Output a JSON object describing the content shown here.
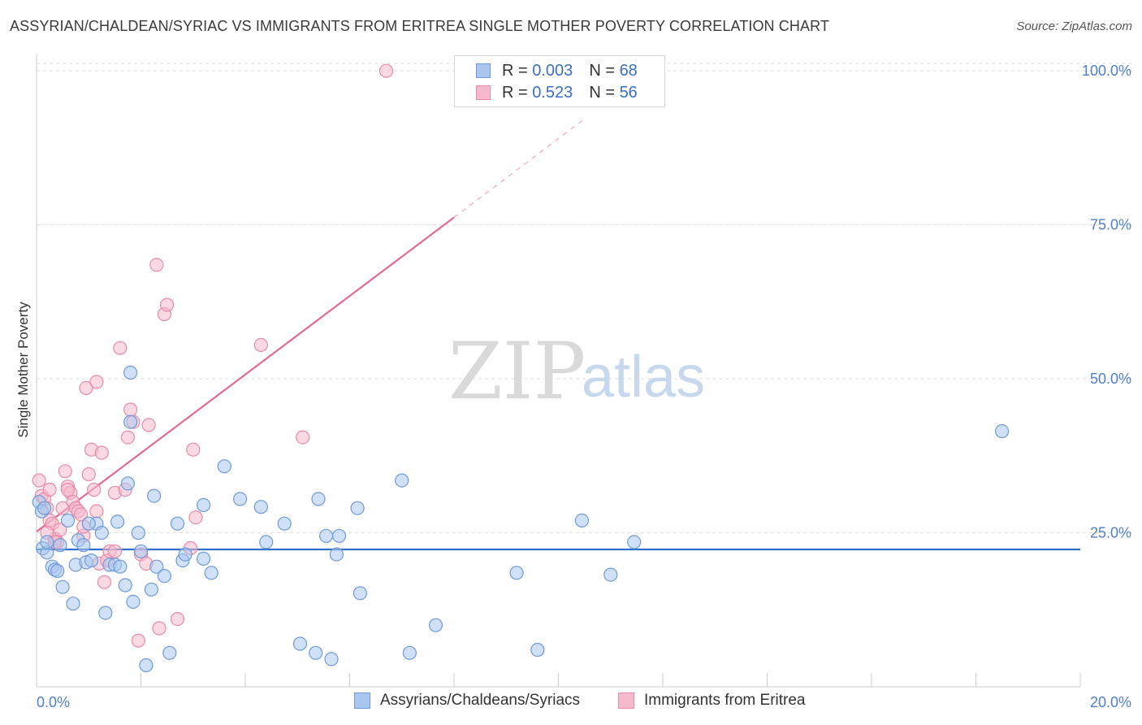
{
  "title": "ASSYRIAN/CHALDEAN/SYRIAC VS IMMIGRANTS FROM ERITREA SINGLE MOTHER POVERTY CORRELATION CHART",
  "source": "Source: ZipAtlas.com",
  "watermark": {
    "zip": "ZIP",
    "atlas": "atlas"
  },
  "legend": {
    "rows": [
      {
        "r_label": "R =",
        "r_value": "0.003",
        "n_label": "N =",
        "n_value": "68"
      },
      {
        "r_label": "R =",
        "r_value": "0.523",
        "n_label": "N =",
        "n_value": "56"
      }
    ]
  },
  "bottom_legend": [
    "Assyrians/Chaldeans/Syriacs",
    "Immigrants from Eritrea"
  ],
  "colors": {
    "blue_fill": "#a9c6ef",
    "blue_stroke": "#6f9ad8",
    "blue_line": "#2f6fcc",
    "pink_fill": "#f6b9cc",
    "pink_stroke": "#e98aa8",
    "pink_line": "#e46a93",
    "tick_text": "#4f7fcf",
    "grid": "#dddddd"
  },
  "chart_data": {
    "type": "scatter",
    "title": "ASSYRIAN/CHALDEAN/SYRIAC VS IMMIGRANTS FROM ERITREA SINGLE MOTHER POVERTY CORRELATION CHART",
    "xlabel": "",
    "ylabel": "Single Mother Poverty",
    "xlim": [
      0,
      20
    ],
    "ylim": [
      0,
      102
    ],
    "x_tick_labels": [
      "0.0%",
      "20.0%"
    ],
    "y_ticks": [
      25,
      50,
      75,
      100
    ],
    "y_tick_labels": [
      "25.0%",
      "50.0%",
      "75.0%",
      "100.0%"
    ],
    "grid": true,
    "legend_position": "top-center",
    "series": [
      {
        "name": "Assyrians/Chaldeans/Syriacs",
        "r": 0.003,
        "n": 68,
        "trend": {
          "x0": 0,
          "y0": 22.3,
          "x1": 20,
          "y1": 22.3
        },
        "points": [
          [
            0.05,
            30.0
          ],
          [
            0.1,
            28.5
          ],
          [
            0.12,
            22.5
          ],
          [
            0.2,
            21.8
          ],
          [
            0.2,
            23.5
          ],
          [
            0.3,
            19.5
          ],
          [
            0.35,
            19.0
          ],
          [
            0.4,
            18.8
          ],
          [
            0.45,
            23.0
          ],
          [
            0.5,
            16.2
          ],
          [
            0.6,
            27.0
          ],
          [
            0.7,
            13.5
          ],
          [
            0.75,
            19.8
          ],
          [
            0.8,
            23.8
          ],
          [
            0.9,
            23.0
          ],
          [
            0.95,
            20.2
          ],
          [
            1.05,
            20.5
          ],
          [
            1.15,
            26.5
          ],
          [
            1.25,
            25.0
          ],
          [
            1.32,
            12.0
          ],
          [
            1.4,
            19.8
          ],
          [
            1.5,
            19.8
          ],
          [
            1.55,
            26.8
          ],
          [
            1.6,
            19.5
          ],
          [
            1.7,
            16.5
          ],
          [
            1.75,
            33.0
          ],
          [
            1.8,
            43.0
          ],
          [
            1.8,
            51.0
          ],
          [
            1.85,
            13.8
          ],
          [
            1.95,
            25.0
          ],
          [
            2.0,
            22.0
          ],
          [
            2.1,
            3.5
          ],
          [
            2.2,
            15.8
          ],
          [
            2.25,
            31.0
          ],
          [
            2.3,
            19.5
          ],
          [
            2.45,
            18.0
          ],
          [
            2.55,
            5.5
          ],
          [
            2.7,
            26.5
          ],
          [
            2.8,
            20.5
          ],
          [
            2.85,
            21.5
          ],
          [
            3.2,
            20.8
          ],
          [
            3.2,
            29.5
          ],
          [
            3.35,
            18.5
          ],
          [
            3.6,
            35.8
          ],
          [
            3.9,
            30.5
          ],
          [
            4.3,
            29.2
          ],
          [
            4.4,
            23.5
          ],
          [
            4.75,
            26.5
          ],
          [
            5.05,
            7.0
          ],
          [
            5.35,
            5.5
          ],
          [
            5.4,
            30.5
          ],
          [
            5.55,
            24.5
          ],
          [
            5.65,
            4.5
          ],
          [
            5.75,
            21.5
          ],
          [
            5.8,
            24.5
          ],
          [
            6.15,
            29.0
          ],
          [
            6.2,
            15.2
          ],
          [
            7.0,
            33.5
          ],
          [
            7.15,
            5.5
          ],
          [
            7.65,
            10.0
          ],
          [
            9.2,
            18.5
          ],
          [
            9.6,
            6.0
          ],
          [
            10.45,
            27.0
          ],
          [
            11.0,
            18.2
          ],
          [
            11.45,
            23.5
          ],
          [
            18.5,
            41.5
          ],
          [
            0.15,
            29.0
          ],
          [
            1.0,
            26.5
          ]
        ]
      },
      {
        "name": "Immigrants from Eritrea",
        "r": 0.523,
        "n": 56,
        "trend": {
          "x0": 0,
          "y0": 25.2,
          "x1": 8.0,
          "y1": 76.2,
          "dash_x1": 10.5,
          "dash_y1": 92.2
        },
        "points": [
          [
            0.05,
            33.5
          ],
          [
            0.1,
            31.0
          ],
          [
            0.15,
            30.5
          ],
          [
            0.2,
            29.0
          ],
          [
            0.25,
            27.0
          ],
          [
            0.3,
            26.5
          ],
          [
            0.35,
            24.0
          ],
          [
            0.4,
            23.5
          ],
          [
            0.45,
            25.5
          ],
          [
            0.5,
            29.0
          ],
          [
            0.55,
            35.0
          ],
          [
            0.6,
            32.5
          ],
          [
            0.65,
            31.5
          ],
          [
            0.7,
            30.0
          ],
          [
            0.75,
            29.0
          ],
          [
            0.8,
            28.5
          ],
          [
            0.85,
            28.0
          ],
          [
            0.9,
            24.5
          ],
          [
            0.95,
            48.5
          ],
          [
            1.0,
            34.5
          ],
          [
            1.05,
            38.5
          ],
          [
            1.1,
            32.0
          ],
          [
            1.15,
            49.5
          ],
          [
            1.2,
            20.0
          ],
          [
            1.25,
            38.0
          ],
          [
            1.3,
            17.0
          ],
          [
            1.35,
            20.5
          ],
          [
            1.4,
            22.0
          ],
          [
            1.5,
            31.5
          ],
          [
            1.6,
            55.0
          ],
          [
            1.7,
            32.0
          ],
          [
            1.75,
            40.5
          ],
          [
            1.8,
            45.0
          ],
          [
            1.85,
            43.0
          ],
          [
            1.95,
            7.5
          ],
          [
            2.0,
            21.5
          ],
          [
            2.1,
            20.0
          ],
          [
            2.15,
            42.5
          ],
          [
            2.3,
            68.5
          ],
          [
            2.35,
            9.5
          ],
          [
            2.45,
            60.5
          ],
          [
            2.5,
            62.0
          ],
          [
            2.7,
            11.0
          ],
          [
            2.95,
            22.5
          ],
          [
            3.0,
            38.5
          ],
          [
            3.05,
            27.5
          ],
          [
            4.3,
            55.5
          ],
          [
            5.1,
            40.5
          ],
          [
            6.7,
            100.0
          ],
          [
            0.2,
            25.0
          ],
          [
            0.35,
            23.5
          ],
          [
            0.6,
            32.0
          ],
          [
            0.9,
            26.0
          ],
          [
            1.15,
            28.5
          ],
          [
            1.5,
            22.0
          ],
          [
            0.25,
            32.0
          ]
        ]
      }
    ]
  }
}
